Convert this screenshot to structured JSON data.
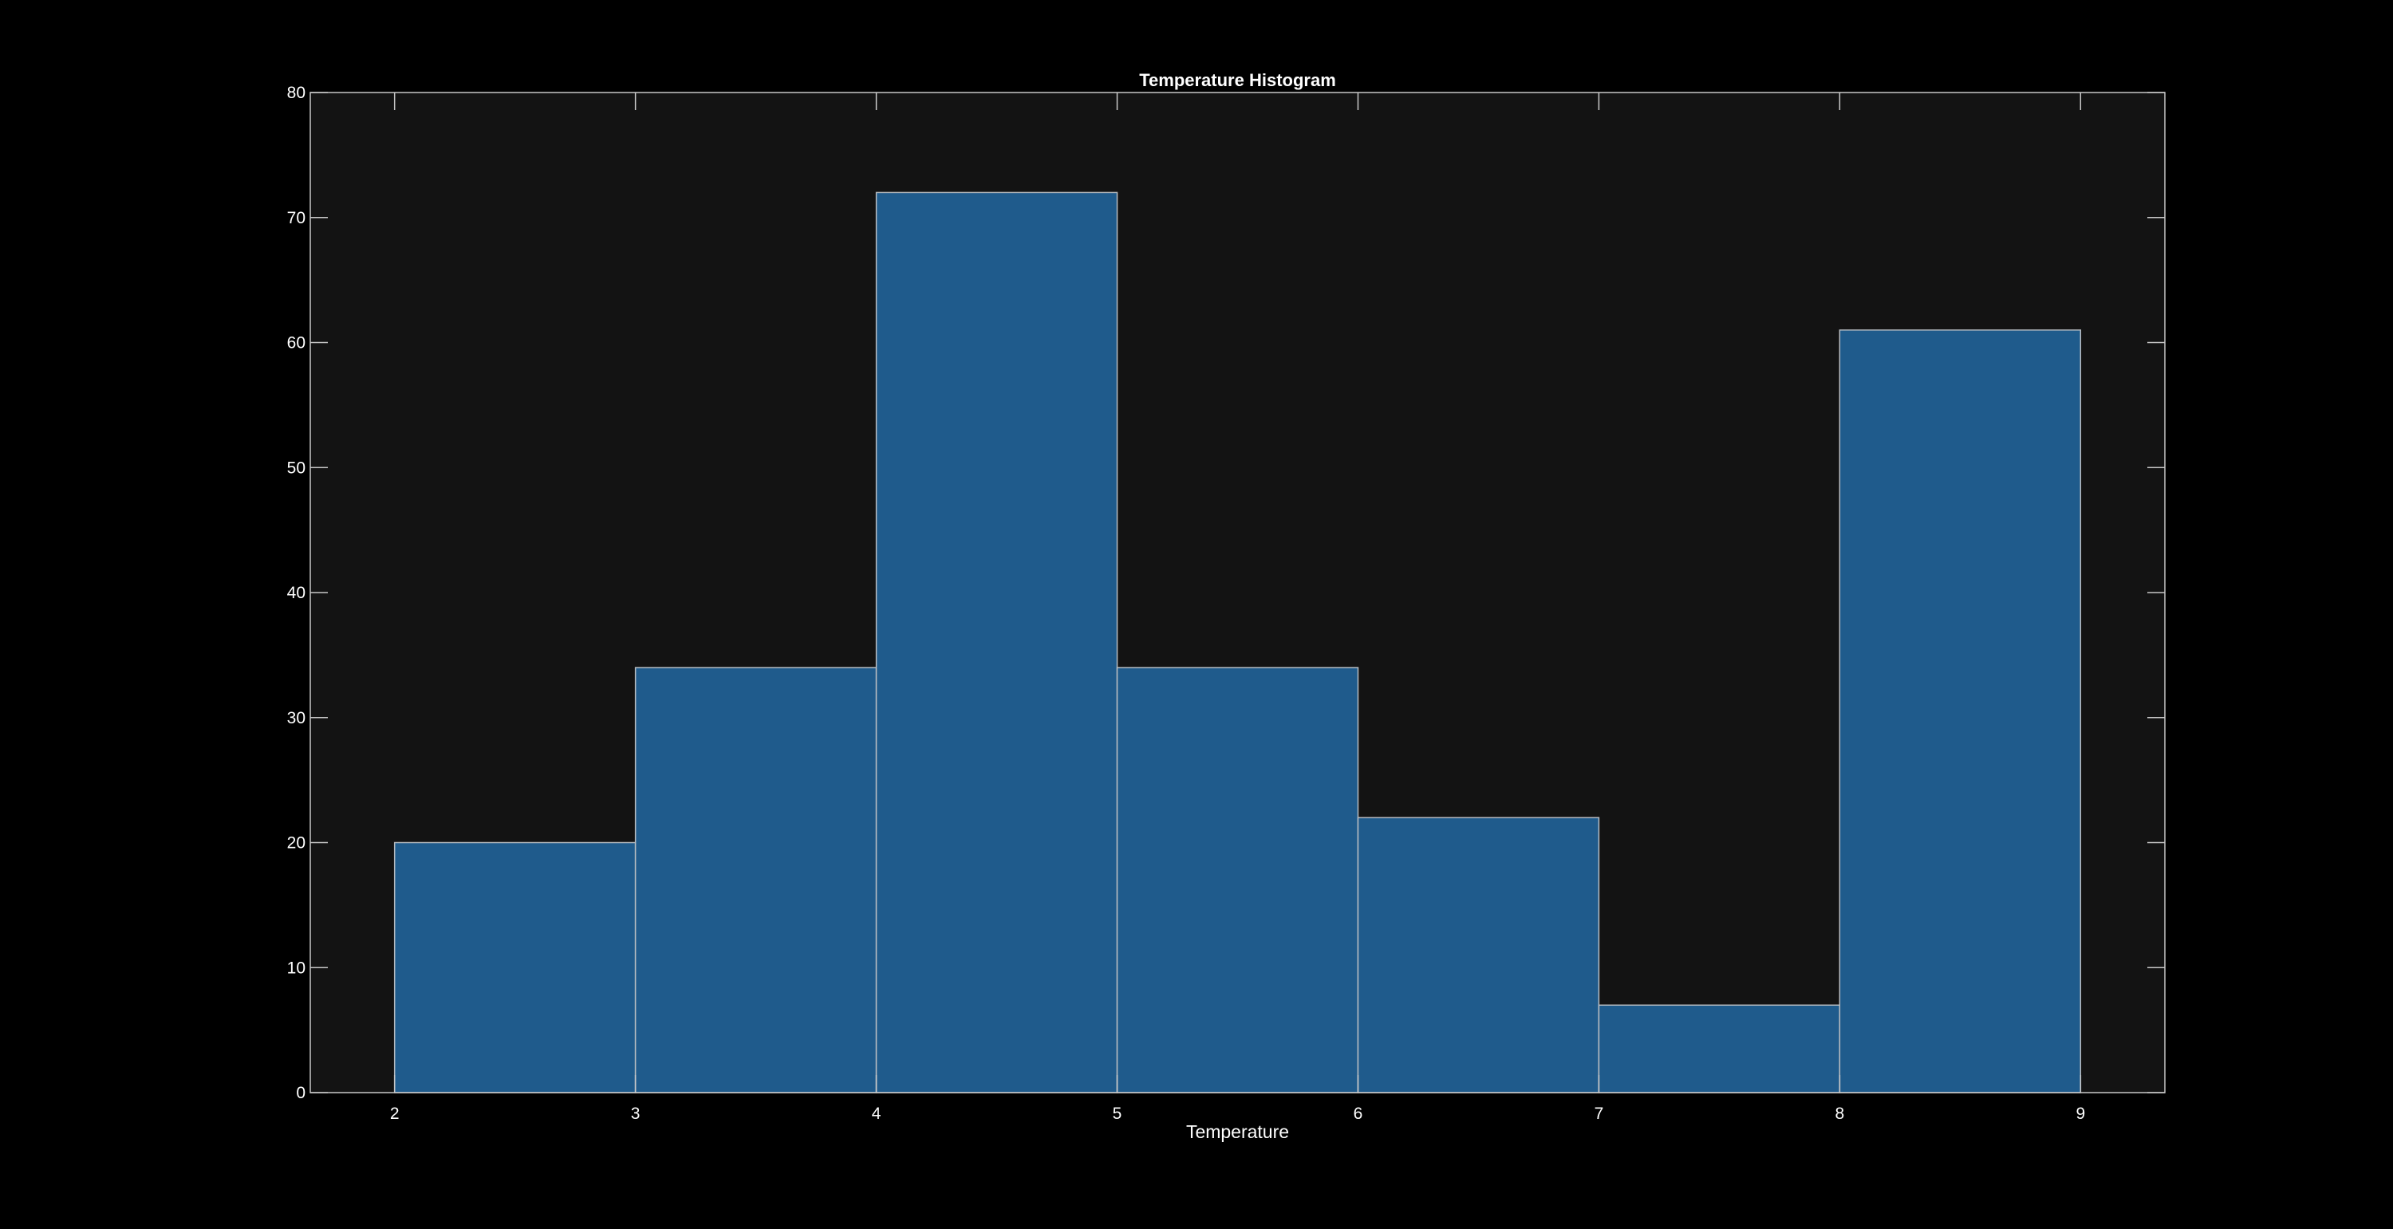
{
  "colors": {
    "figure_background": "#000000",
    "axes_background": "#131313",
    "bar_fill": "#1f5b8c",
    "bar_edge": "#b7bcc1",
    "axis_color": "#c8c8c8",
    "text_color": "#ffffff"
  },
  "chart_data": {
    "type": "bar",
    "histogram": true,
    "title": "Temperature Histogram",
    "xlabel": "Temperature",
    "ylabel": "",
    "bin_edges": [
      2,
      3,
      4,
      5,
      6,
      7,
      8,
      9
    ],
    "values": [
      20,
      34,
      72,
      34,
      22,
      7,
      61
    ],
    "xlim": [
      1.65,
      9.35
    ],
    "ylim": [
      0,
      80
    ],
    "xticks": [
      2,
      3,
      4,
      5,
      6,
      7,
      8,
      9
    ],
    "yticks": [
      0,
      10,
      20,
      30,
      40,
      50,
      60,
      70,
      80
    ],
    "grid": false,
    "legend": false
  }
}
